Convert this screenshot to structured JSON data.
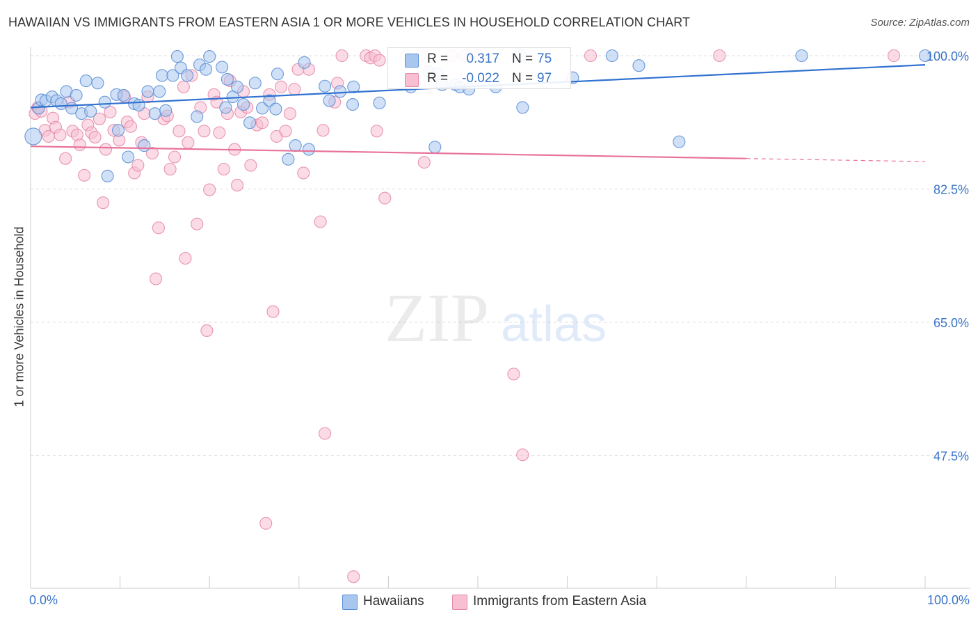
{
  "title": "HAWAIIAN VS IMMIGRANTS FROM EASTERN ASIA 1 OR MORE VEHICLES IN HOUSEHOLD CORRELATION CHART",
  "source": "Source: ZipAtlas.com",
  "watermark": {
    "zip": "ZIP",
    "atlas": "atlas"
  },
  "colors": {
    "blue_fill": "#a9c6ee",
    "blue_stroke": "#5b8fd6",
    "blue_line": "#3172d0",
    "pink_fill": "#f7bfd1",
    "pink_stroke": "#e58aa9",
    "pink_line": "#e8729a",
    "axis_text": "#3a74c8",
    "grid": "#dcdcdc"
  },
  "legend_top": {
    "rows": [
      {
        "series": "Hawaiians",
        "r_label": "R =",
        "r_value": "0.317",
        "n_label": "N =",
        "n_value": "75",
        "color": "#a9c6ee"
      },
      {
        "series": "Immigrants from Eastern Asia",
        "r_label": "R =",
        "r_value": "-0.022",
        "n_label": "N =",
        "n_value": "97",
        "color": "#f7bfd1"
      }
    ]
  },
  "legend_bottom": {
    "items": [
      {
        "label": "Hawaiians",
        "color": "#a9c6ee"
      },
      {
        "label": "Immigrants from Eastern Asia",
        "color": "#f7bfd1"
      }
    ]
  },
  "chart_data": {
    "type": "scatter",
    "title": "HAWAIIAN VS IMMIGRANTS FROM EASTERN ASIA 1 OR MORE VEHICLES IN HOUSEHOLD CORRELATION CHART",
    "xlabel": "",
    "ylabel": "1 or more Vehicles in Household",
    "x_ticks": [
      "0.0%",
      "100.0%"
    ],
    "y_ticks": [
      "100.0%",
      "82.5%",
      "65.0%",
      "47.5%"
    ],
    "xlim": [
      0,
      100
    ],
    "ylim": [
      30.4,
      101.4
    ],
    "grid": "horizontal dashed",
    "legend_placement": "top-center",
    "series": [
      {
        "name": "Hawaiians",
        "r": 0.317,
        "n": 75,
        "trend": {
          "x0": 0,
          "y0": 93.2,
          "x1": 100,
          "y1": 98.8,
          "dashed_from": null
        },
        "points": [
          [
            0.3,
            89.4
          ],
          [
            0.9,
            93.1
          ],
          [
            1.2,
            94.2
          ],
          [
            1.7,
            94.1
          ],
          [
            2.4,
            94.6
          ],
          [
            2.9,
            94.1
          ],
          [
            3.4,
            93.7
          ],
          [
            4.0,
            95.3
          ],
          [
            4.6,
            93.1
          ],
          [
            5.1,
            94.8
          ],
          [
            5.7,
            92.4
          ],
          [
            6.2,
            96.7
          ],
          [
            6.7,
            92.7
          ],
          [
            7.5,
            96.4
          ],
          [
            8.3,
            93.9
          ],
          [
            8.6,
            84.2
          ],
          [
            9.6,
            94.9
          ],
          [
            9.8,
            90.2
          ],
          [
            10.4,
            94.8
          ],
          [
            10.9,
            86.7
          ],
          [
            11.6,
            93.7
          ],
          [
            12.1,
            93.5
          ],
          [
            12.7,
            88.2
          ],
          [
            13.1,
            95.3
          ],
          [
            13.9,
            92.4
          ],
          [
            14.4,
            95.3
          ],
          [
            14.7,
            97.4
          ],
          [
            15.1,
            92.8
          ],
          [
            15.9,
            97.4
          ],
          [
            16.4,
            99.9
          ],
          [
            16.8,
            98.4
          ],
          [
            17.5,
            97.4
          ],
          [
            18.6,
            92.0
          ],
          [
            18.9,
            98.8
          ],
          [
            19.6,
            98.2
          ],
          [
            20.0,
            99.9
          ],
          [
            21.4,
            98.5
          ],
          [
            21.8,
            93.2
          ],
          [
            22.0,
            96.9
          ],
          [
            22.6,
            94.6
          ],
          [
            23.1,
            95.9
          ],
          [
            23.8,
            93.6
          ],
          [
            24.5,
            91.2
          ],
          [
            25.1,
            96.4
          ],
          [
            25.9,
            93.1
          ],
          [
            26.7,
            94.1
          ],
          [
            27.4,
            93.0
          ],
          [
            27.6,
            97.6
          ],
          [
            28.8,
            86.4
          ],
          [
            29.6,
            88.2
          ],
          [
            30.6,
            99.1
          ],
          [
            31.1,
            87.7
          ],
          [
            32.9,
            96.0
          ],
          [
            33.4,
            94.1
          ],
          [
            34.6,
            95.3
          ],
          [
            36.0,
            93.6
          ],
          [
            36.1,
            95.9
          ],
          [
            39.0,
            93.8
          ],
          [
            42.5,
            95.9
          ],
          [
            44.5,
            97.9
          ],
          [
            45.2,
            88.0
          ],
          [
            45.5,
            97.6
          ],
          [
            46.0,
            96.2
          ],
          [
            47.5,
            96.2
          ],
          [
            48.0,
            95.9
          ],
          [
            49.0,
            95.6
          ],
          [
            52.0,
            95.9
          ],
          [
            54.8,
            100.0
          ],
          [
            55.0,
            93.2
          ],
          [
            60.6,
            97.1
          ],
          [
            65.0,
            100.0
          ],
          [
            68.0,
            98.7
          ],
          [
            72.5,
            88.7
          ],
          [
            86.2,
            100.0
          ],
          [
            100.0,
            100.0
          ]
        ]
      },
      {
        "name": "Immigrants from Eastern Asia",
        "r": -0.022,
        "n": 97,
        "trend": {
          "x0": 0,
          "y0": 88.1,
          "x1": 100,
          "y1": 86.1,
          "dashed_from": 80
        },
        "points": [
          [
            0.5,
            92.4
          ],
          [
            0.8,
            93.2
          ],
          [
            1.2,
            92.7
          ],
          [
            1.6,
            90.2
          ],
          [
            2.0,
            89.4
          ],
          [
            2.5,
            91.8
          ],
          [
            2.8,
            90.6
          ],
          [
            3.3,
            89.6
          ],
          [
            3.9,
            86.5
          ],
          [
            4.3,
            93.9
          ],
          [
            4.7,
            90.1
          ],
          [
            5.2,
            89.6
          ],
          [
            5.5,
            88.3
          ],
          [
            6.0,
            84.3
          ],
          [
            6.4,
            90.9
          ],
          [
            6.8,
            89.9
          ],
          [
            7.2,
            89.3
          ],
          [
            7.7,
            91.7
          ],
          [
            8.1,
            80.7
          ],
          [
            8.4,
            87.7
          ],
          [
            8.9,
            92.6
          ],
          [
            9.3,
            90.2
          ],
          [
            9.9,
            88.9
          ],
          [
            10.5,
            94.6
          ],
          [
            10.8,
            91.3
          ],
          [
            11.2,
            90.7
          ],
          [
            11.6,
            84.6
          ],
          [
            12.0,
            85.6
          ],
          [
            12.4,
            88.6
          ],
          [
            12.7,
            92.4
          ],
          [
            13.1,
            94.6
          ],
          [
            13.6,
            87.2
          ],
          [
            14.0,
            70.7
          ],
          [
            14.3,
            77.4
          ],
          [
            14.9,
            91.7
          ],
          [
            15.3,
            92.1
          ],
          [
            15.6,
            85.1
          ],
          [
            16.1,
            86.7
          ],
          [
            16.6,
            90.1
          ],
          [
            17.1,
            95.9
          ],
          [
            17.3,
            73.4
          ],
          [
            17.6,
            88.6
          ],
          [
            18.0,
            97.4
          ],
          [
            18.6,
            77.9
          ],
          [
            19.0,
            93.2
          ],
          [
            19.4,
            90.1
          ],
          [
            19.7,
            63.9
          ],
          [
            20.0,
            82.4
          ],
          [
            20.5,
            94.9
          ],
          [
            20.8,
            93.9
          ],
          [
            21.1,
            89.9
          ],
          [
            21.6,
            85.1
          ],
          [
            22.0,
            92.4
          ],
          [
            22.3,
            96.7
          ],
          [
            22.8,
            87.7
          ],
          [
            23.1,
            83.0
          ],
          [
            23.5,
            92.6
          ],
          [
            23.8,
            95.3
          ],
          [
            24.2,
            93.2
          ],
          [
            24.6,
            85.6
          ],
          [
            25.3,
            90.9
          ],
          [
            25.9,
            91.2
          ],
          [
            26.3,
            38.6
          ],
          [
            26.7,
            94.9
          ],
          [
            27.1,
            66.4
          ],
          [
            27.5,
            89.4
          ],
          [
            28.0,
            95.9
          ],
          [
            28.5,
            90.1
          ],
          [
            29.0,
            92.4
          ],
          [
            29.5,
            95.6
          ],
          [
            29.9,
            98.2
          ],
          [
            30.5,
            84.6
          ],
          [
            31.1,
            98.2
          ],
          [
            32.4,
            78.2
          ],
          [
            32.7,
            90.2
          ],
          [
            32.9,
            50.4
          ],
          [
            34.0,
            93.9
          ],
          [
            34.3,
            96.4
          ],
          [
            34.8,
            100.0
          ],
          [
            36.1,
            31.6
          ],
          [
            37.5,
            100.0
          ],
          [
            38.0,
            99.7
          ],
          [
            38.5,
            100.0
          ],
          [
            38.7,
            90.1
          ],
          [
            39.0,
            99.4
          ],
          [
            39.6,
            81.3
          ],
          [
            42.0,
            100.0
          ],
          [
            43.5,
            100.0
          ],
          [
            44.0,
            86.0
          ],
          [
            47.0,
            100.0
          ],
          [
            48.5,
            100.0
          ],
          [
            50.0,
            100.0
          ],
          [
            54.0,
            58.2
          ],
          [
            55.0,
            47.6
          ],
          [
            62.6,
            100.0
          ],
          [
            77.0,
            100.0
          ],
          [
            96.5,
            100.0
          ]
        ]
      }
    ]
  },
  "axes": {
    "ylabel": "1 or more Vehicles in Household",
    "x_left": "0.0%",
    "x_right": "100.0%",
    "y_ticks": [
      {
        "label": "100.0%",
        "value": 100.0
      },
      {
        "label": "82.5%",
        "value": 82.5
      },
      {
        "label": "65.0%",
        "value": 65.0
      },
      {
        "label": "47.5%",
        "value": 47.5
      }
    ]
  }
}
